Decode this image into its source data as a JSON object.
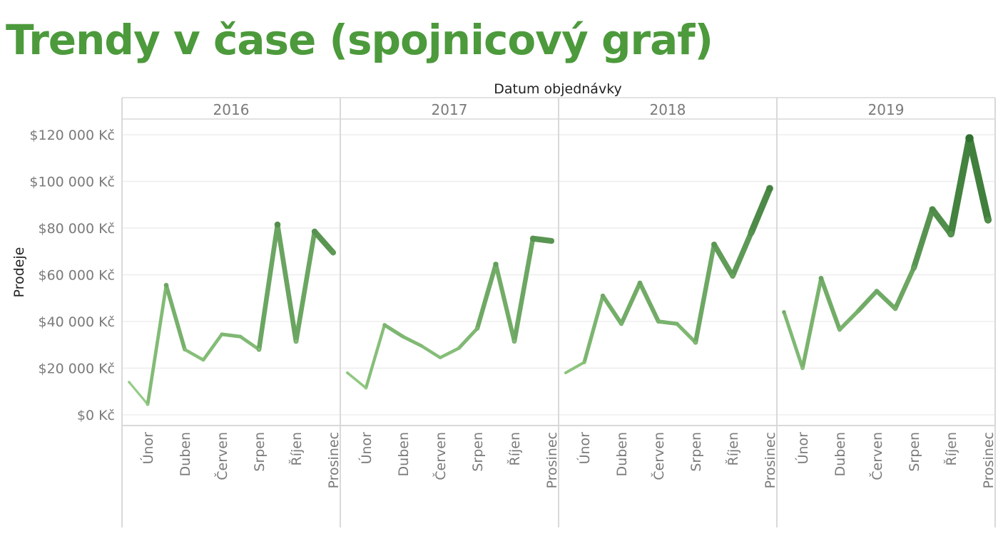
{
  "title": "Trendy v čase (spojnicový graf)",
  "chart_data": {
    "type": "line",
    "column_header": "Datum objednávky",
    "ylabel": "Prodeje",
    "ylim": [
      0,
      120000
    ],
    "y_ticks": [
      "$0 Kč",
      "$20 000 Kč",
      "$40 000 Kč",
      "$60 000 Kč",
      "$80 000 Kč",
      "$100 000 Kč",
      "$120 000 Kč"
    ],
    "y_tick_values": [
      0,
      20000,
      40000,
      60000,
      80000,
      100000,
      120000
    ],
    "x_tick_labels": [
      "Únor",
      "Duben",
      "Červen",
      "Srpen",
      "Říjen",
      "Prosinec"
    ],
    "x_tick_months": [
      2,
      4,
      6,
      8,
      10,
      12
    ],
    "grid": true,
    "colors": {
      "low": "#9ed48d",
      "high": "#2f6f2e",
      "axis": "#d9d9d9",
      "grid": "#eeeeee",
      "text": "#7a7a7a"
    },
    "panels": [
      {
        "year": "2016",
        "months": [
          1,
          2,
          3,
          4,
          5,
          6,
          7,
          8,
          9,
          10,
          11,
          12
        ],
        "values": [
          14000,
          4500,
          55500,
          28000,
          23500,
          34500,
          33500,
          28000,
          81500,
          31500,
          78500,
          69500
        ]
      },
      {
        "year": "2017",
        "months": [
          1,
          2,
          3,
          4,
          5,
          6,
          7,
          8,
          9,
          10,
          11,
          12
        ],
        "values": [
          18000,
          11500,
          38500,
          33500,
          29500,
          24500,
          28500,
          37000,
          64500,
          31500,
          75500,
          74500
        ]
      },
      {
        "year": "2018",
        "months": [
          1,
          2,
          3,
          4,
          5,
          6,
          7,
          8,
          9,
          10,
          11,
          12
        ],
        "values": [
          18000,
          22500,
          51000,
          39000,
          56500,
          40000,
          39000,
          31000,
          73000,
          59500,
          78000,
          97000
        ]
      },
      {
        "year": "2019",
        "months": [
          1,
          2,
          3,
          4,
          5,
          6,
          7,
          8,
          9,
          10,
          11,
          12
        ],
        "values": [
          44000,
          20000,
          58500,
          36500,
          44500,
          53000,
          45500,
          63000,
          88000,
          77500,
          118500,
          83500
        ]
      }
    ]
  }
}
